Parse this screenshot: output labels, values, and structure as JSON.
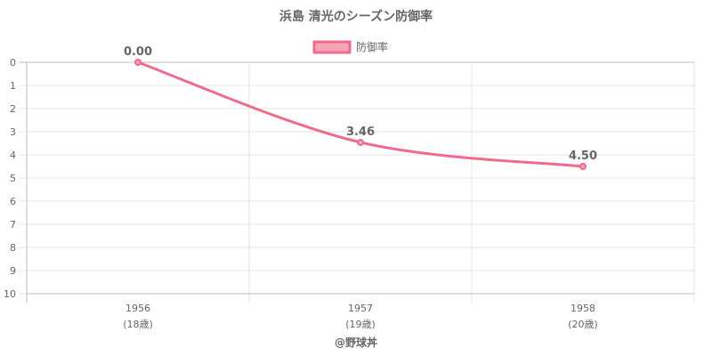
{
  "chart_data": {
    "type": "line",
    "title": "浜島 清光のシーズン防御率",
    "categories": [
      "1956",
      "1957",
      "1958"
    ],
    "category_sublabels": [
      "(18歳)",
      "(19歳)",
      "(20歳)"
    ],
    "series": [
      {
        "name": "防御率",
        "values": [
          0.0,
          3.46,
          4.5
        ],
        "value_labels": [
          "0.00",
          "3.46",
          "4.50"
        ],
        "color": "#f06a8c",
        "fill_color": "#f6a5b9"
      }
    ],
    "y_ticks": [
      "0",
      "1",
      "2",
      "3",
      "4",
      "5",
      "6",
      "7",
      "8",
      "9",
      "10"
    ],
    "ylim": [
      0,
      10
    ],
    "y_reversed": true,
    "grid": true,
    "legend_position": "top-center",
    "credit": "@野球丼"
  }
}
